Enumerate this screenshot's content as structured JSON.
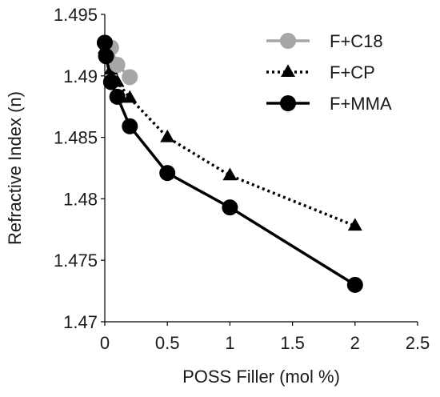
{
  "chart_data": {
    "type": "line",
    "xlabel": "POSS Filler (mol %)",
    "ylabel": "Refractive Index (n)",
    "xlim": [
      0,
      2.5
    ],
    "ylim": [
      1.47,
      1.495
    ],
    "x_ticks": [
      "0",
      "0.5",
      "1",
      "1.5",
      "2",
      "2.5"
    ],
    "y_ticks": [
      "1.47",
      "1.475",
      "1.48",
      "1.485",
      "1.49",
      "1.495"
    ],
    "x_tick_values": [
      0,
      0.5,
      1,
      1.5,
      2,
      2.5
    ],
    "y_tick_values": [
      1.47,
      1.475,
      1.48,
      1.485,
      1.49,
      1.495
    ],
    "grid": false,
    "legend_position": "top-right",
    "series": [
      {
        "name": "F+C18",
        "color": "#a6a6a6",
        "line_style": "solid",
        "marker": "circle",
        "x": [
          0,
          0.05,
          0.1,
          0.2
        ],
        "y": [
          1.4927,
          1.4923,
          1.4909,
          1.4899
        ]
      },
      {
        "name": "F+CP",
        "color": "#000000",
        "line_style": "dotted",
        "marker": "triangle",
        "x": [
          0,
          0.05,
          0.1,
          0.2,
          0.5,
          1,
          2
        ],
        "y": [
          1.4922,
          1.4905,
          1.4895,
          1.4882,
          1.485,
          1.4819,
          1.4778
        ]
      },
      {
        "name": "F+MMA",
        "color": "#000000",
        "line_style": "solid",
        "marker": "circle",
        "x": [
          0,
          0.01,
          0.05,
          0.1,
          0.2,
          0.5,
          1,
          2
        ],
        "y": [
          1.4927,
          1.4916,
          1.4895,
          1.4883,
          1.4859,
          1.4821,
          1.4793,
          1.473
        ]
      }
    ]
  }
}
